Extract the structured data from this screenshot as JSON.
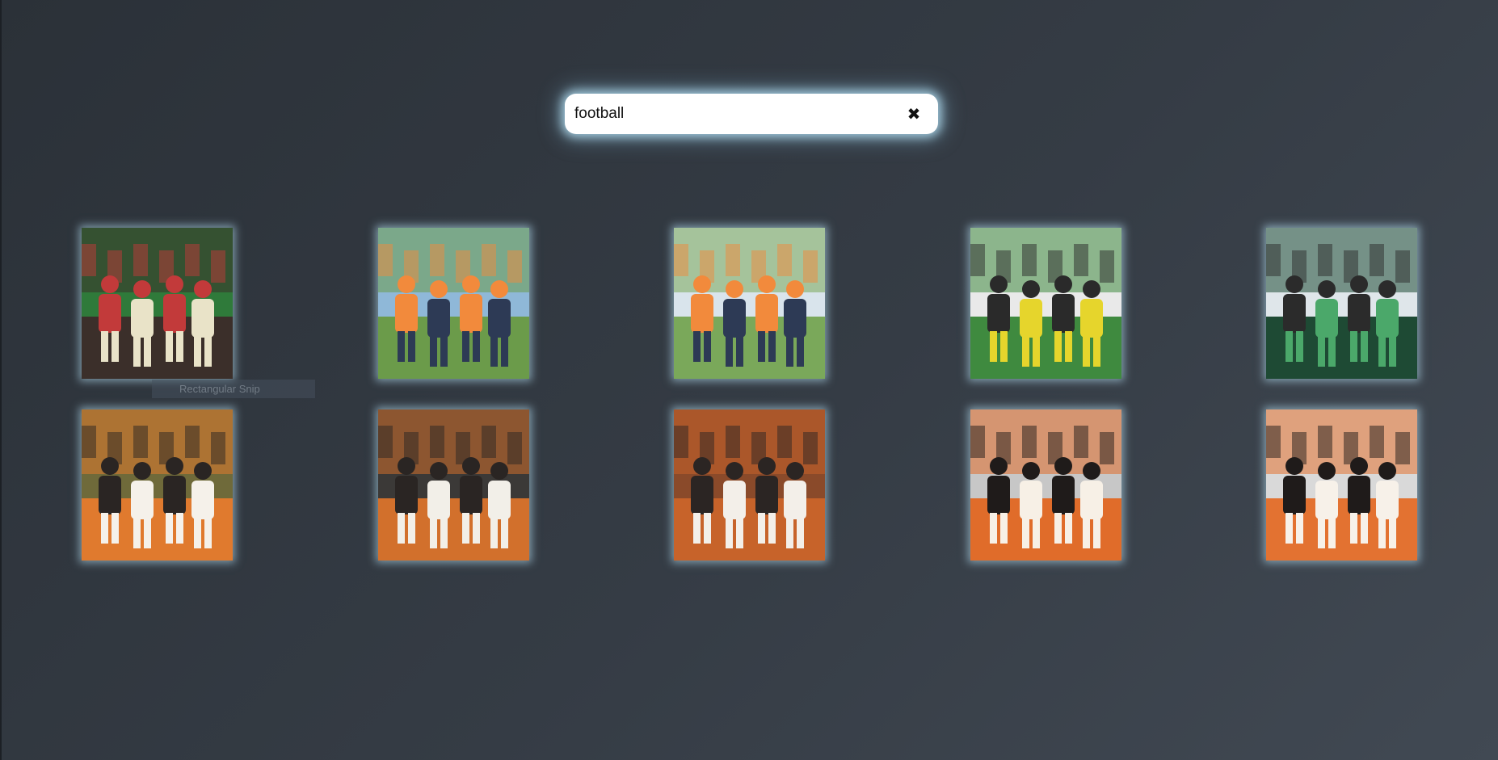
{
  "search": {
    "value": "football",
    "clear_icon": "close-icon",
    "clear_glyph": "✖"
  },
  "tooltip": {
    "text": "Rectangular Snip"
  },
  "images": [
    {
      "id": "fans-cheering",
      "palette": [
        "#3b2f2a",
        "#c23a3a",
        "#e9e3c8",
        "#2f7a3a"
      ]
    },
    {
      "id": "soccer-orange-vs-navy-billboard",
      "palette": [
        "#6b9b4a",
        "#f28a3c",
        "#2d3a55",
        "#8fb8d8"
      ]
    },
    {
      "id": "soccer-player-kick",
      "palette": [
        "#7aa85a",
        "#f28a3c",
        "#2d3a55",
        "#d9e4ec"
      ]
    },
    {
      "id": "football-referee-catch",
      "palette": [
        "#3f8a3f",
        "#2a2a2a",
        "#e6d52c",
        "#e9e9e9"
      ]
    },
    {
      "id": "green-helmets-huddle",
      "palette": [
        "#1e4a34",
        "#2b2b2b",
        "#4ba86a",
        "#dfe6ea"
      ]
    },
    {
      "id": "osu-players-orange-crowd",
      "palette": [
        "#e07a2e",
        "#2a2523",
        "#f5f1ea",
        "#6f6a3a"
      ]
    },
    {
      "id": "osu-players-celebrate",
      "palette": [
        "#d2702c",
        "#2a2523",
        "#f2efe8",
        "#3b3937"
      ]
    },
    {
      "id": "osu-team-group",
      "palette": [
        "#c7632a",
        "#2b2523",
        "#f3efe9",
        "#8a4a2a"
      ]
    },
    {
      "id": "osu-cheerleaders",
      "palette": [
        "#e06c2a",
        "#1f1b1a",
        "#f7f0e6",
        "#c7c7c7"
      ]
    },
    {
      "id": "osu-cheerleaders-stands",
      "palette": [
        "#e37231",
        "#1f1b1a",
        "#f7f1e9",
        "#d9d9d9"
      ]
    }
  ]
}
